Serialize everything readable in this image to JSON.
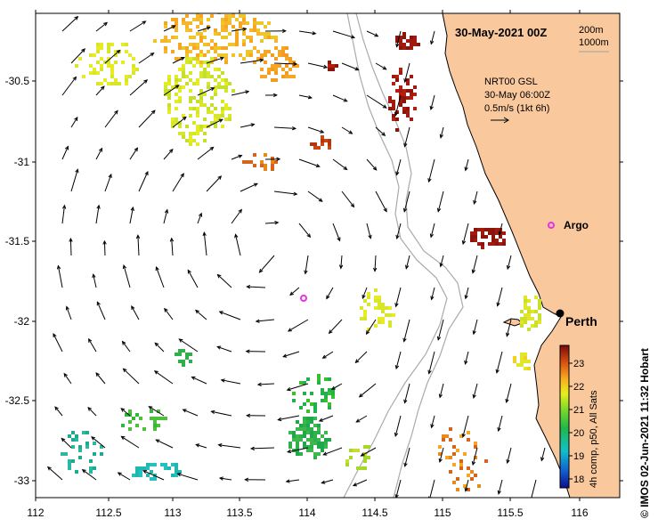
{
  "title": "30-May-2021 00Z",
  "depth_legend": {
    "line1": "200m",
    "line2": "1000m"
  },
  "current_info": {
    "line1": "NRT00 GSL",
    "line2": "30-May 06:00Z",
    "line3": "0.5m/s (1kt 6h)"
  },
  "x_ticks": [
    "112",
    "112.5",
    "113",
    "113.5",
    "114",
    "114.5",
    "115",
    "115.5",
    "116"
  ],
  "y_ticks": [
    "-30.5",
    "-31",
    "-31.5",
    "-32",
    "-32.5",
    "-33"
  ],
  "places": {
    "argo": "Argo",
    "perth": "Perth"
  },
  "colorbar": {
    "label": "4h comp, p50, All Sats",
    "ticks": [
      "23",
      "22",
      "21",
      "20",
      "19",
      "18"
    ]
  },
  "side_label": "©  IMOS 02-Jun-2021 11:32 Hobart",
  "colors": {
    "land": "#f9c89d",
    "marker": "#e832e8",
    "isobath": "#aaaaaa"
  }
}
